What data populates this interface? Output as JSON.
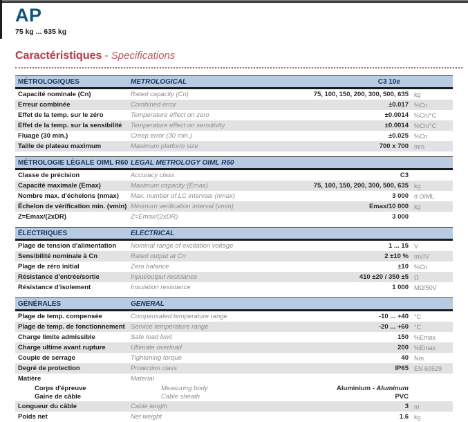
{
  "header": {
    "product": "AP",
    "range": "75 kg ... 635 kg",
    "title_fr": "Caractéristiques",
    "title_sep": " - ",
    "title_en": "Specifications"
  },
  "colors": {
    "brand_blue": "#0f537b",
    "accent_red": "#c2353e",
    "section_header_bg": "#b9cbe2",
    "section_header_text": "#17365d",
    "row_stripe": "#e2e2e4"
  },
  "table": {
    "sections": [
      {
        "fr": "MÉTROLOGIQUES",
        "en": "METROLOGICAL",
        "model": "C3 10e",
        "rows": [
          {
            "fr": "Capacité nominale (Cn)",
            "en": "Rated capacity (Cn)",
            "value": "75, 100, 150, 200, 300, 500, 635",
            "unit": "kg"
          },
          {
            "fr": "Erreur combinée",
            "en": "Combined error",
            "value": "±0.017",
            "unit": "%Cn"
          },
          {
            "fr": "Effet de la temp. sur le zéro",
            "en": "Temperature effect on zero",
            "value": "±0.0014",
            "unit": "%Cn/°C"
          },
          {
            "fr": "Effet de la temp. sur la sensibilité",
            "en": "Temperature effect on sensitivity",
            "value": "±0.0014",
            "unit": "%Cn/°C"
          },
          {
            "fr": "Fluage (30 min.)",
            "en": "Creep error (30 min.)",
            "value": "±0.025",
            "unit": "%Cn"
          },
          {
            "fr": "Taille de plateau maximum",
            "en": "Maximum platform size",
            "value": "700 x 700",
            "unit": "mm"
          }
        ]
      },
      {
        "fr": "MÉTROLOGIE LÉGALE OIML R60",
        "en": "LEGAL METROLOGY OIML R60",
        "rows": [
          {
            "fr": "Classe de précision",
            "en": "Accuracy class",
            "value": "C3",
            "unit": ""
          },
          {
            "fr": "Capacité maximale (Emax)",
            "en": "Maximum capacity (Emax)",
            "value": "75, 100, 150, 200, 300, 500, 635",
            "unit": "kg"
          },
          {
            "fr": "Nombre max. d'échelons (nmax)",
            "en": "Max. number of LC intervals (nmax)",
            "value": "3 000",
            "unit": "d OIML"
          },
          {
            "fr": "Échelon de vérification min. (vmin)",
            "en": "Minimum verification interval (vmin)",
            "value": "Emax/10 000",
            "unit": "kg"
          },
          {
            "fr": "Z=Emax/(2xDR)",
            "en": "Z=Emax/(2xDR)",
            "value": "3 000",
            "unit": ""
          }
        ]
      },
      {
        "fr": "ÉLECTRIQUES",
        "en": "ELECTRICAL",
        "rows": [
          {
            "fr": "Plage de tension d'alimentation",
            "en": "Nominal range of excitation voltage",
            "value": "1 ... 15",
            "unit": "V"
          },
          {
            "fr": "Sensibilité nominale à Cn",
            "en": "Rated output at Cn",
            "value": "2 ±10 %",
            "unit": "mV/V"
          },
          {
            "fr": "Plage de zéro initial",
            "en": "Zero balance",
            "value": "±10",
            "unit": "%Cn"
          },
          {
            "fr": "Résistance d'entrée/sortie",
            "en": "Input/output resistance",
            "value": "410 ±20 / 350 ±5",
            "unit": "Ω"
          },
          {
            "fr": "Résistance d'isolement",
            "en": "Insulation resistance",
            "value": "1 000",
            "unit": "MΩ/50V"
          }
        ]
      },
      {
        "fr": "GÉNÉRALES",
        "en": "GENERAL",
        "rows": [
          {
            "fr": "Plage de temp. compensée",
            "en": "Compensated temperature range",
            "value": "-10 ... +40",
            "unit": "°C"
          },
          {
            "fr": "Plage de temp. de fonctionnement",
            "en": "Service temperature range",
            "value": "-20 ... +60",
            "unit": "°C"
          },
          {
            "fr": "Charge limite admissible",
            "en": "Safe load limit",
            "value": "150",
            "unit": "%Emax"
          },
          {
            "fr": "Charge ultime avant rupture",
            "en": "Ultimate overload",
            "value": "200",
            "unit": "%Emax"
          },
          {
            "fr": "Couple de serrage",
            "en": "Tightening torque",
            "value": "40",
            "unit": "Nm"
          },
          {
            "fr": "Degré de protection",
            "en": "Protection class",
            "value": "IP65",
            "unit": "EN 60529"
          },
          {
            "fr": "Matière",
            "en": "Material",
            "value": "",
            "unit": ""
          },
          {
            "fr": "Corps d'épreuve",
            "en": "Measuring body",
            "value": "Aluminium - ",
            "value_italic": "Aluminum",
            "unit": "",
            "indent": true
          },
          {
            "fr": "Gaine de câble",
            "en": "Cable sheath",
            "value": "PVC",
            "unit": "",
            "indent": true
          },
          {
            "fr": "Longueur du câble",
            "en": "Cable length",
            "value": "3",
            "unit": "m"
          },
          {
            "fr": "Poids net",
            "en": "Net weight",
            "value": "1.6",
            "unit": "kg"
          }
        ]
      }
    ]
  }
}
